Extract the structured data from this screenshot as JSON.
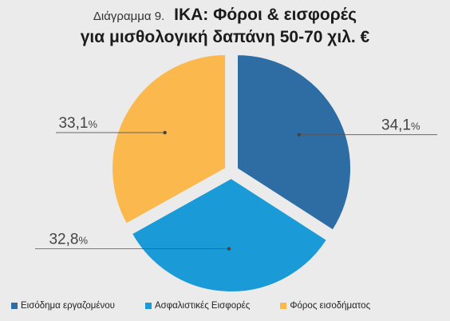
{
  "title": {
    "prefix": "Διάγραμμα 9.",
    "line1": "ΙΚΑ: Φόροι & εισφορές",
    "line2": "για μισθολογική δαπάνη 50-70 χιλ. €"
  },
  "chart_data": {
    "type": "pie",
    "title": "ΙΚΑ: Φόροι & εισφορές για μισθολογική δαπάνη 50-70 χιλ. €",
    "series": [
      {
        "name": "Εισόδημα εργαζομένου",
        "value": 34.1,
        "label": "34,1",
        "color": "#2e6da4"
      },
      {
        "name": "Ασφαλιστικές Εισφορές",
        "value": 32.8,
        "label": "32,8",
        "color": "#1a9ad6"
      },
      {
        "name": "Φόρος εισοδήματος",
        "value": 33.1,
        "label": "33,1",
        "color": "#fbb84c"
      }
    ],
    "unit": "%",
    "legend_position": "bottom"
  }
}
